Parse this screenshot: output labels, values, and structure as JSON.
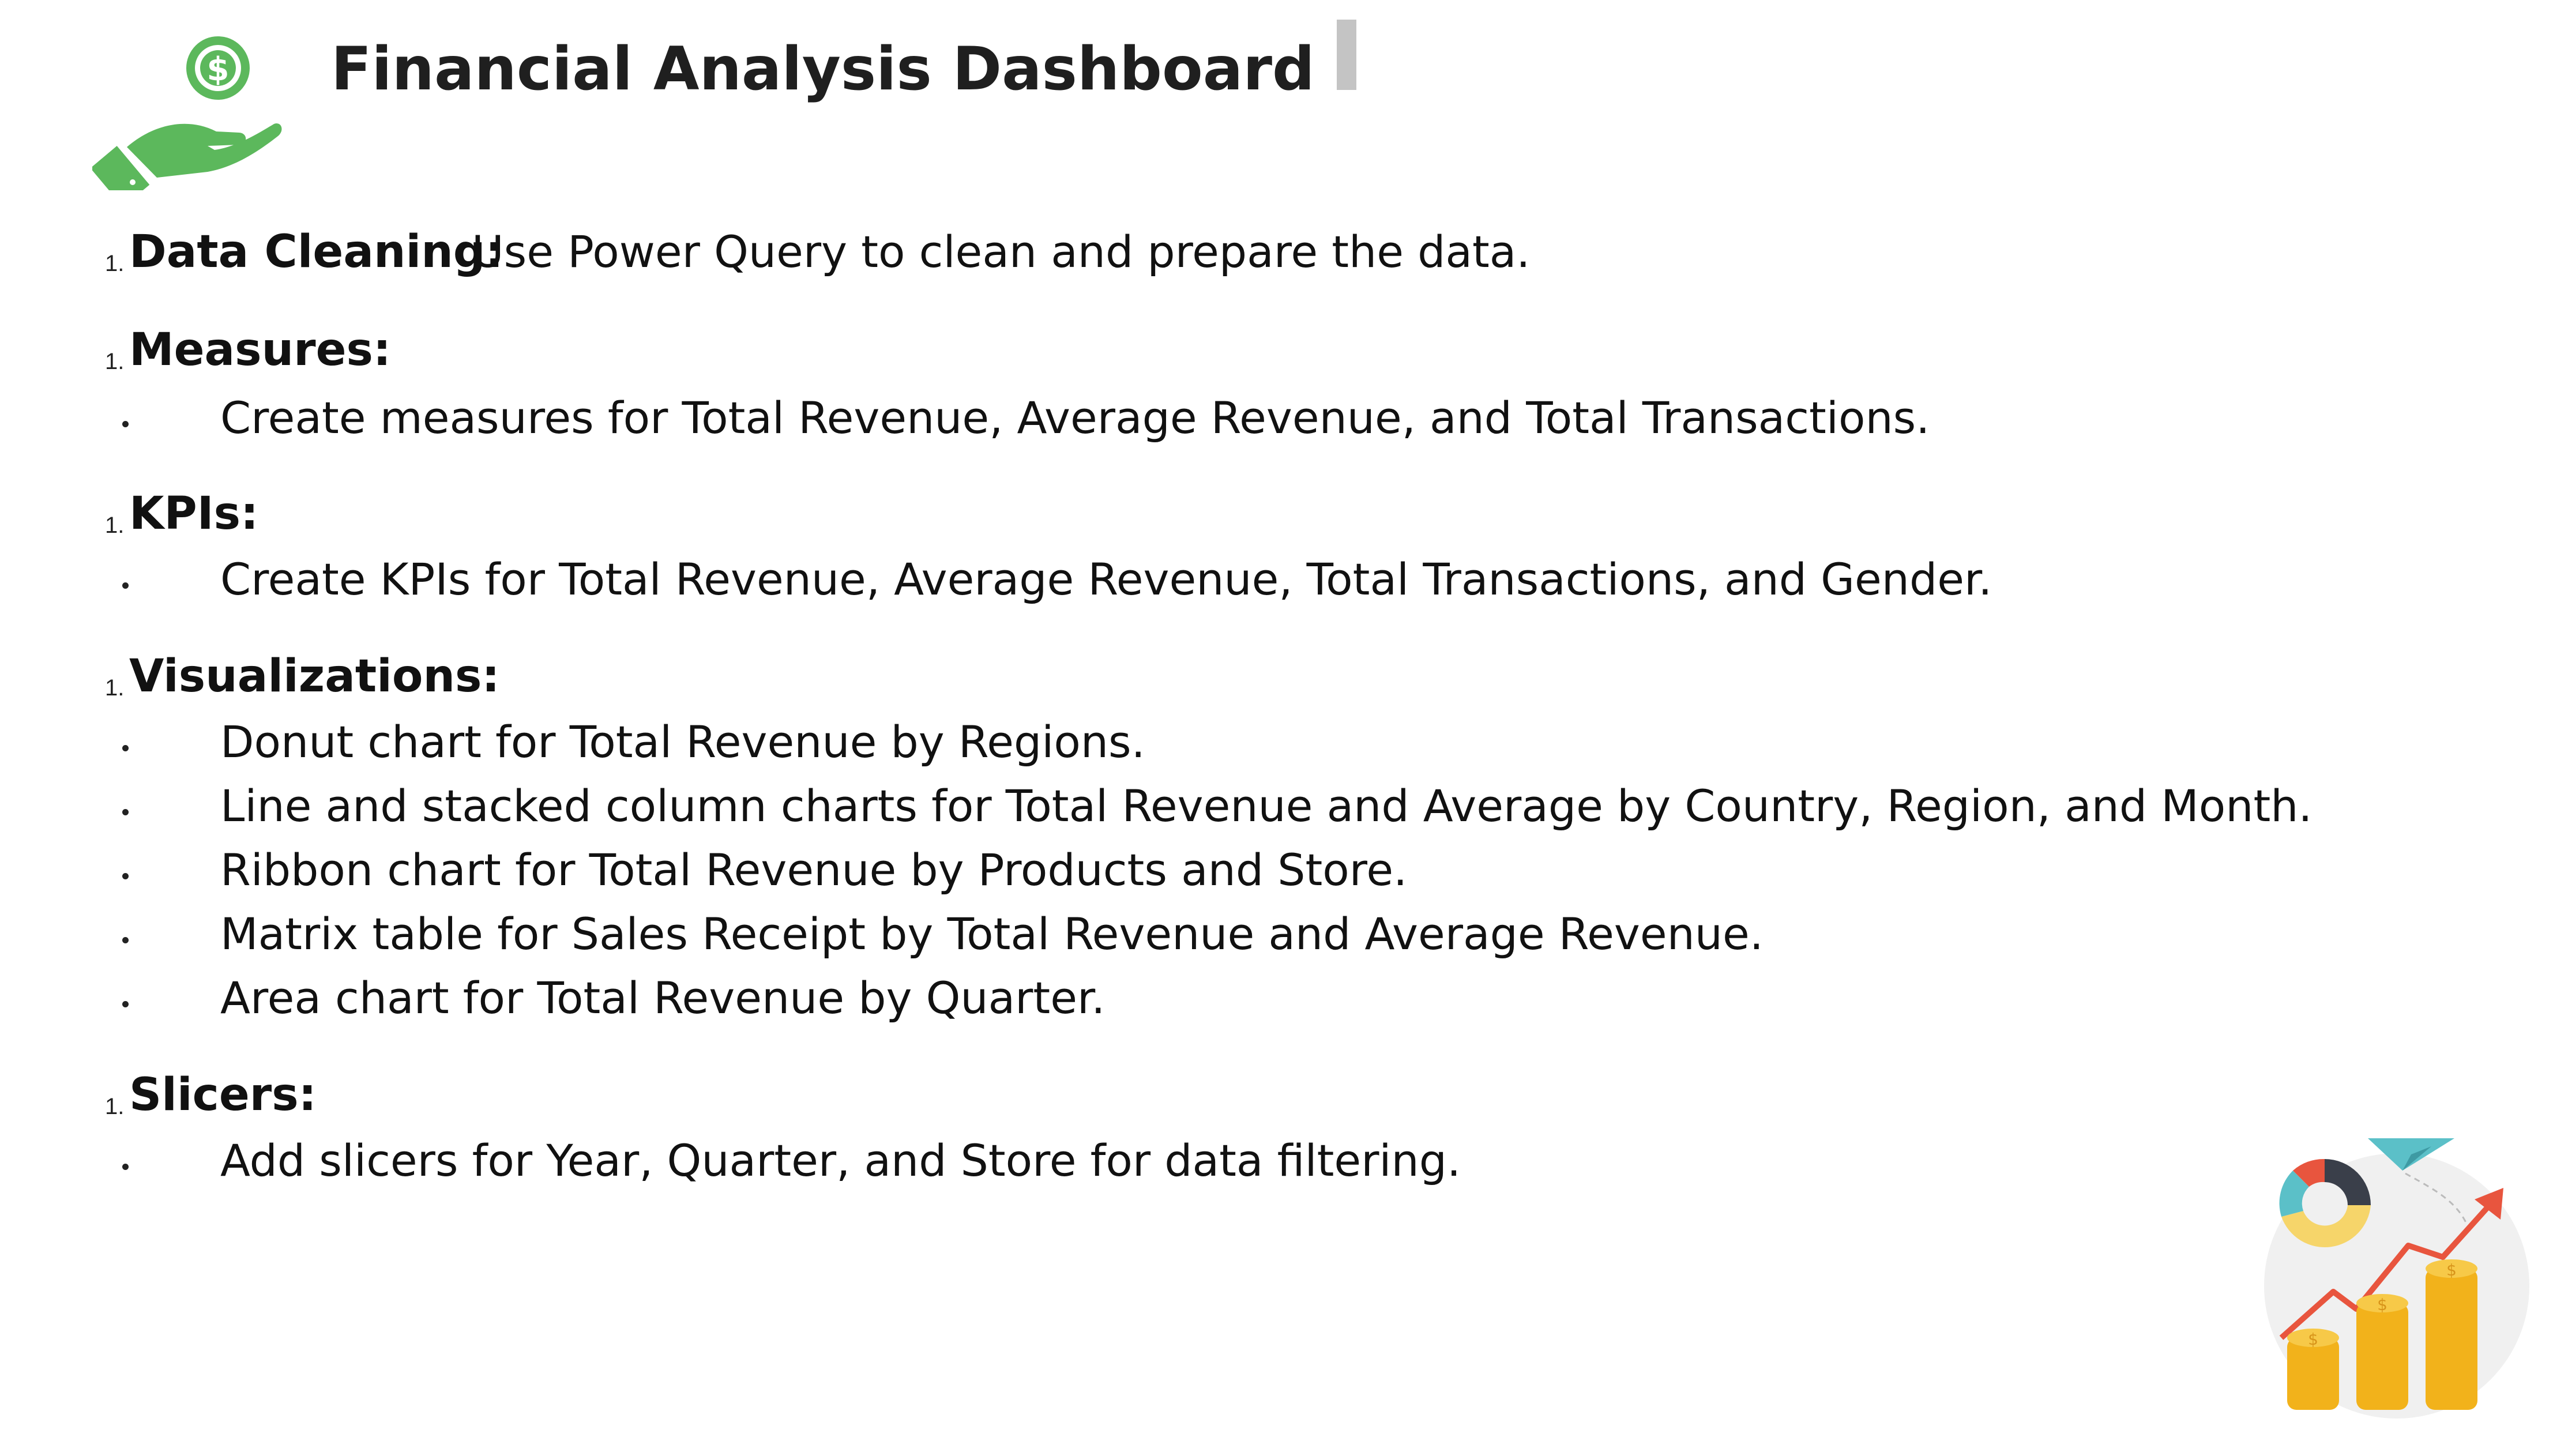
{
  "title": "Financial Analysis Dashboard",
  "sections": [
    {
      "number": "1.",
      "label": "Data Cleaning:",
      "text": "Use Power Query to clean and prepare the data.",
      "bullets": []
    },
    {
      "number": "1.",
      "label": "Measures:",
      "text": "",
      "bullets": [
        "Create measures for Total Revenue, Average Revenue, and Total Transactions."
      ]
    },
    {
      "number": "1.",
      "label": "KPIs:",
      "text": "",
      "bullets": [
        "Create KPIs for Total Revenue, Average Revenue, Total Transactions, and Gender."
      ]
    },
    {
      "number": "1.",
      "label": "Visualizations:",
      "text": "",
      "bullets": [
        "Donut chart for Total Revenue by Regions.",
        "Line and stacked column charts for Total Revenue and Average by Country, Region, and Month.",
        "Ribbon chart for Total Revenue by Products and Store.",
        "Matrix table for Sales Receipt by Total Revenue and Average Revenue.",
        "Area chart for Total Revenue by Quarter."
      ]
    },
    {
      "number": "1.",
      "label": "Slicers:",
      "text": "",
      "bullets": [
        "Add slicers for Year, Quarter, and Store for data filtering."
      ]
    }
  ],
  "icons": {
    "logo": "hand-dollar-icon",
    "corner": "finance-growth-illustration"
  },
  "colors": {
    "logo_green": "#5cb85c",
    "text": "#111111",
    "accent_gray": "#c4c4c4",
    "coin_gold": "#f2b21b",
    "arrow_red": "#e8553e",
    "plane_teal": "#5bc0c8"
  }
}
